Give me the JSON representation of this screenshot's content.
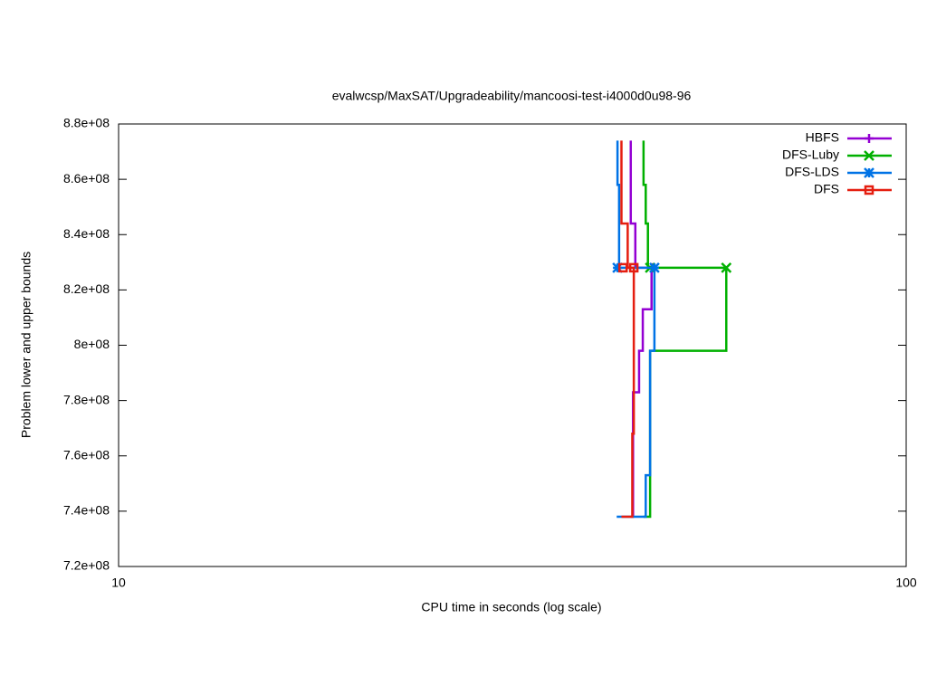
{
  "chart_data": {
    "type": "line",
    "title": "evalwcsp/MaxSAT/Upgradeability/mancoosi-test-i4000d0u98-96",
    "xlabel": "CPU time in seconds (log scale)",
    "ylabel": "Problem lower and upper bounds",
    "xscale": "log",
    "xlim": [
      10,
      100
    ],
    "xticks": [
      10,
      100
    ],
    "ylim": [
      720000000,
      880000000
    ],
    "yticks": [
      {
        "value": 720000000,
        "label": "7.2e+08"
      },
      {
        "value": 740000000,
        "label": "7.4e+08"
      },
      {
        "value": 760000000,
        "label": "7.6e+08"
      },
      {
        "value": 780000000,
        "label": "7.8e+08"
      },
      {
        "value": 800000000,
        "label": "8e+08"
      },
      {
        "value": 820000000,
        "label": "8.2e+08"
      },
      {
        "value": 840000000,
        "label": "8.4e+08"
      },
      {
        "value": 860000000,
        "label": "8.6e+08"
      },
      {
        "value": 880000000,
        "label": "8.8e+08"
      }
    ],
    "grid": false,
    "legend": "top-right",
    "step": true,
    "series": [
      {
        "name": "HBFS",
        "color": "#9400d3",
        "marker": "plus",
        "x": [
          44.7,
          44.7,
          45.3,
          45.3,
          47.5,
          47.5,
          46.3,
          46.3,
          45.8,
          45.8,
          45.0,
          45.0,
          44.7
        ],
        "values": [
          874000000,
          844000000,
          844000000,
          828000000,
          828000000,
          813000000,
          813000000,
          798000000,
          798000000,
          783000000,
          783000000,
          738000000,
          738000000
        ],
        "points_x": [
          47.5
        ],
        "points_y": [
          828000000
        ]
      },
      {
        "name": "DFS-Luby",
        "color": "#00b000",
        "marker": "x",
        "x": [
          46.4,
          46.4,
          46.7,
          46.7,
          47.0,
          47.0,
          59.1,
          59.1,
          47.3,
          47.3,
          46.4
        ],
        "values": [
          874000000,
          858000000,
          858000000,
          844000000,
          844000000,
          828000000,
          828000000,
          798000000,
          798000000,
          738000000,
          738000000
        ],
        "points_x": [
          47.3,
          59.1
        ],
        "points_y": [
          828000000,
          828000000
        ]
      },
      {
        "name": "DFS-LDS",
        "color": "#0073e6",
        "marker": "star",
        "x": [
          43.0,
          43.0,
          43.2,
          43.2,
          47.9,
          47.9,
          47.3,
          47.3,
          46.7,
          46.7,
          42.9
        ],
        "values": [
          874000000,
          858000000,
          858000000,
          828000000,
          828000000,
          798000000,
          798000000,
          753000000,
          753000000,
          738000000,
          738000000
        ],
        "points_x": [
          43.0,
          47.9
        ],
        "points_y": [
          828000000,
          828000000
        ]
      },
      {
        "name": "DFS",
        "color": "#e51e10",
        "marker": "square",
        "x": [
          43.5,
          43.5,
          44.3,
          44.3,
          45.1,
          45.1,
          44.9,
          44.9,
          43.5
        ],
        "values": [
          874000000,
          844000000,
          844000000,
          828000000,
          828000000,
          768000000,
          768000000,
          738000000,
          738000000
        ],
        "points_x": [
          43.7,
          45.1
        ],
        "points_y": [
          828000000,
          828000000
        ]
      }
    ]
  }
}
